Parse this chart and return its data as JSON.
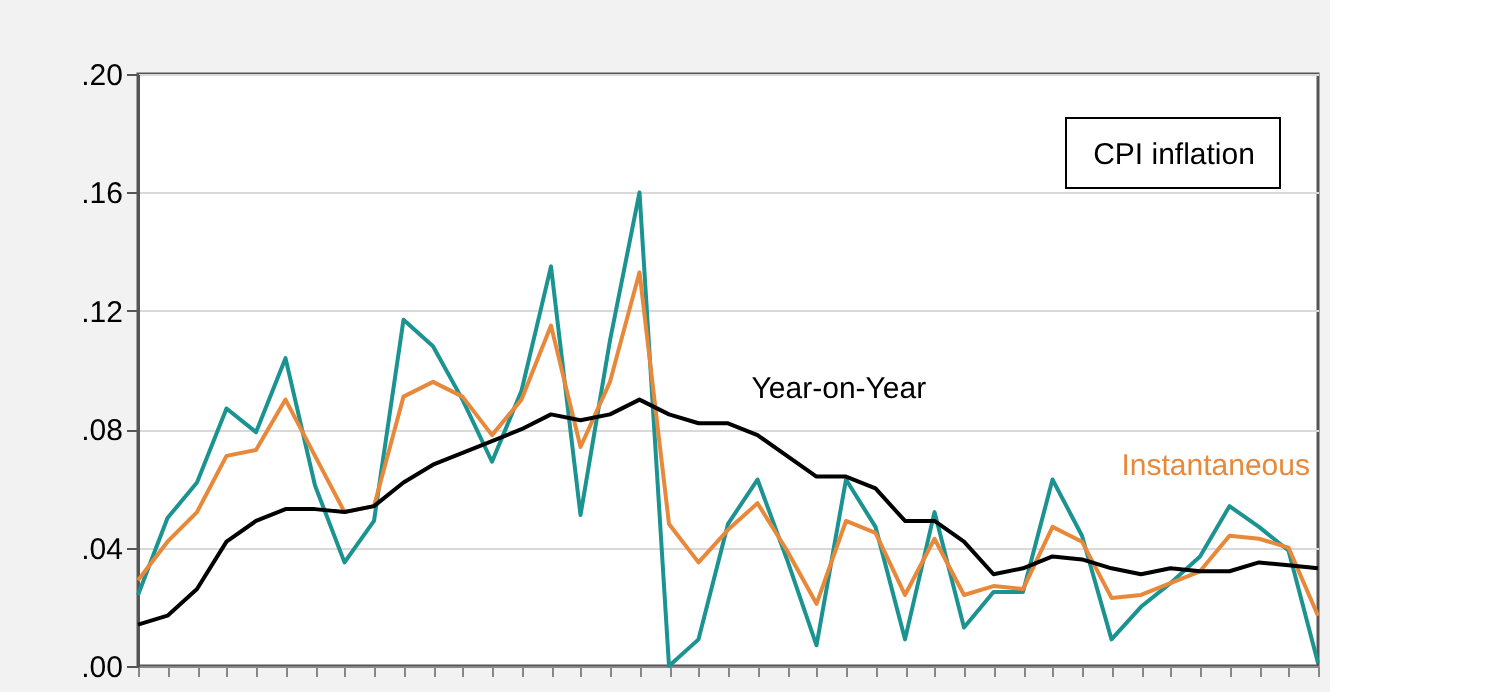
{
  "chart_data": {
    "type": "line",
    "categories": [
      null,
      null,
      null,
      null,
      null,
      null,
      null,
      null,
      null,
      null,
      null,
      null,
      null,
      null,
      null,
      null,
      null,
      null,
      null,
      null,
      null,
      null,
      null,
      null,
      null,
      null,
      null,
      null,
      null,
      null,
      null,
      null,
      null,
      null,
      null,
      null,
      null,
      null,
      null,
      null,
      null
    ],
    "series": [
      {
        "name": null,
        "color": "#1a9391",
        "values": [
          0.024,
          0.05,
          0.062,
          0.087,
          0.079,
          0.104,
          0.061,
          0.035,
          0.049,
          0.117,
          0.108,
          0.09,
          0.069,
          0.093,
          0.135,
          0.051,
          0.11,
          0.16,
          0.0,
          0.009,
          0.048,
          0.063,
          0.036,
          0.007,
          0.063,
          0.047,
          0.009,
          0.052,
          0.013,
          0.025,
          0.025,
          0.063,
          0.044,
          0.009,
          0.02,
          0.028,
          0.037,
          0.054,
          0.047,
          0.039,
          0.001
        ]
      },
      {
        "name": "Instantaneous",
        "color": "#e8883a",
        "values": [
          0.029,
          0.042,
          0.052,
          0.071,
          0.073,
          0.09,
          0.071,
          0.052,
          0.054,
          0.091,
          0.096,
          0.091,
          0.078,
          0.09,
          0.115,
          0.074,
          0.096,
          0.133,
          0.048,
          0.035,
          0.046,
          0.055,
          0.039,
          0.021,
          0.049,
          0.045,
          0.024,
          0.043,
          0.024,
          0.027,
          0.026,
          0.047,
          0.042,
          0.023,
          0.024,
          0.028,
          0.032,
          0.044,
          0.043,
          0.04,
          0.017
        ]
      },
      {
        "name": "Year-on-Year",
        "color": "#000000",
        "values": [
          0.014,
          0.017,
          0.026,
          0.042,
          0.049,
          0.053,
          0.053,
          0.052,
          0.054,
          0.062,
          0.068,
          0.072,
          0.076,
          0.08,
          0.085,
          0.083,
          0.085,
          0.09,
          0.085,
          0.082,
          0.082,
          0.078,
          0.071,
          0.064,
          0.064,
          0.06,
          0.049,
          0.049,
          0.042,
          0.031,
          0.033,
          0.037,
          0.036,
          0.033,
          0.031,
          0.033,
          0.032,
          0.032,
          0.035,
          0.034,
          0.033
        ]
      }
    ],
    "ylim": [
      0,
      0.2
    ],
    "yticks": [
      {
        "value": 0,
        "label": ".00"
      },
      {
        "value": 0.04,
        "label": ".04"
      },
      {
        "value": 0.08,
        "label": ".08"
      },
      {
        "value": 0.12,
        "label": ".12"
      },
      {
        "value": 0.16,
        "label": ".16"
      },
      {
        "value": 0.2,
        "label": ".20"
      }
    ],
    "grid": "y",
    "tick_labels": "y",
    "line_style": "solid",
    "marker": "none",
    "annotations": [
      "CPI inflation"
    ]
  }
}
